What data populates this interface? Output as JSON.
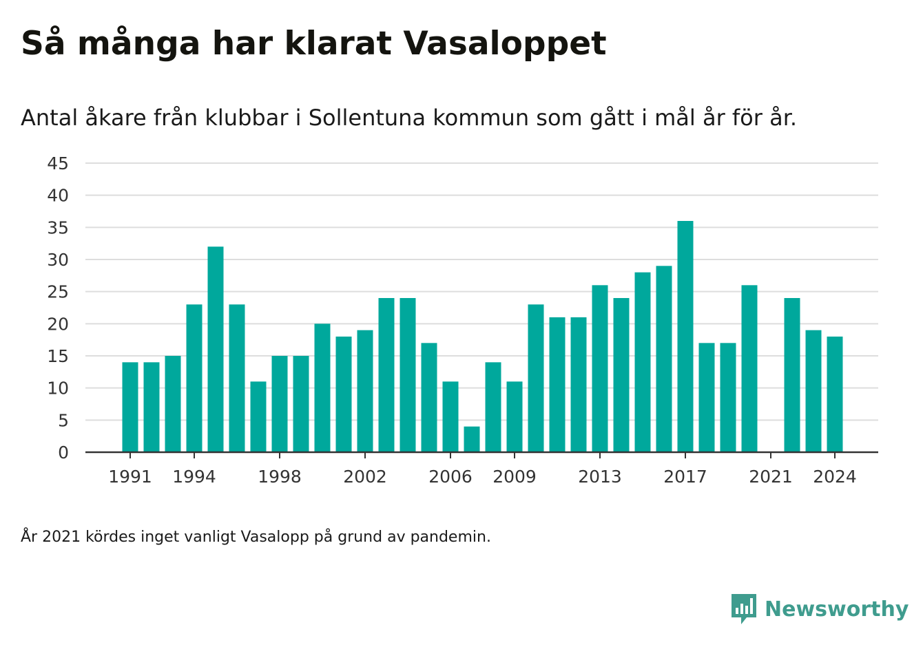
{
  "header": {
    "title": "Så många har klarat Vasaloppet",
    "subtitle": "Antal åkare från klubbar i Sollentuna kommun som gått i mål år för år."
  },
  "footer": {
    "note": "År 2021 kördes inget vanligt Vasalopp på grund av pandemin."
  },
  "brand": {
    "name": "Newsworthy",
    "icon": "newsworthy-logo-icon",
    "color": "#3f9c8e"
  },
  "colors": {
    "bar": "#00a89c",
    "grid": "#dddddd",
    "axis": "#333333",
    "text": "#333333"
  },
  "chart_data": {
    "type": "bar",
    "title": "Så många har klarat Vasaloppet",
    "subtitle": "Antal åkare från klubbar i Sollentuna kommun som gått i mål år för år.",
    "categories": [
      1991,
      1992,
      1993,
      1994,
      1995,
      1996,
      1997,
      1998,
      1999,
      2000,
      2001,
      2002,
      2003,
      2004,
      2005,
      2006,
      2007,
      2008,
      2009,
      2010,
      2011,
      2012,
      2013,
      2014,
      2015,
      2016,
      2017,
      2018,
      2019,
      2020,
      2021,
      2022,
      2023,
      2024
    ],
    "values": [
      14,
      14,
      15,
      23,
      32,
      23,
      11,
      15,
      15,
      20,
      18,
      19,
      24,
      24,
      17,
      11,
      4,
      14,
      11,
      23,
      21,
      21,
      26,
      24,
      28,
      29,
      36,
      17,
      17,
      26,
      null,
      24,
      19,
      18
    ],
    "x_tick_labels": [
      "1991",
      "1994",
      "1998",
      "2002",
      "2006",
      "2009",
      "2013",
      "2017",
      "2021",
      "2024"
    ],
    "y_ticks": [
      0,
      5,
      10,
      15,
      20,
      25,
      30,
      35,
      40,
      45
    ],
    "ylim": [
      0,
      45
    ],
    "xlabel": "",
    "ylabel": "",
    "grid": true,
    "legend": "none"
  }
}
